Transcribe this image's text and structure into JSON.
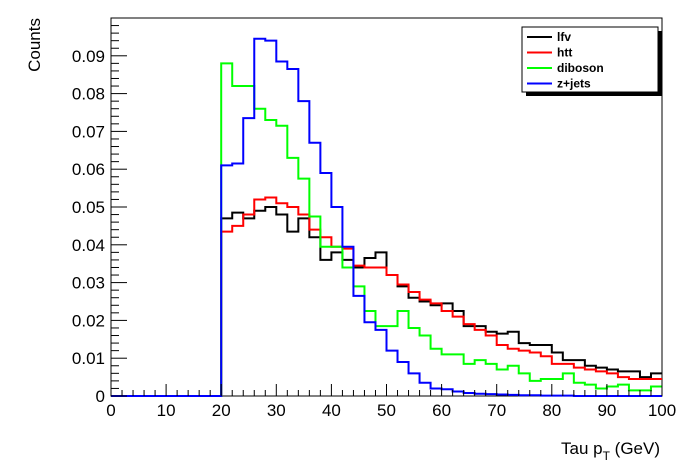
{
  "chart_data": {
    "type": "line",
    "style": "step-histogram",
    "xlabel_main": "Tau p",
    "xlabel_sub": "T",
    "xlabel_unit": " (GeV)",
    "ylabel": "Counts",
    "xlim": [
      0,
      100
    ],
    "ylim": [
      0,
      0.1
    ],
    "x_ticks": [
      "0",
      "10",
      "20",
      "30",
      "40",
      "50",
      "60",
      "70",
      "80",
      "90",
      "100"
    ],
    "x_tick_values": [
      0,
      10,
      20,
      30,
      40,
      50,
      60,
      70,
      80,
      90,
      100
    ],
    "y_ticks": [
      "0",
      "0.01",
      "0.02",
      "0.03",
      "0.04",
      "0.05",
      "0.06",
      "0.07",
      "0.08",
      "0.09"
    ],
    "y_tick_values": [
      0,
      0.01,
      0.02,
      0.03,
      0.04,
      0.05,
      0.06,
      0.07,
      0.08,
      0.09
    ],
    "bin_edges": [
      0,
      2,
      4,
      6,
      8,
      10,
      12,
      14,
      16,
      18,
      20,
      22,
      24,
      26,
      28,
      30,
      32,
      34,
      36,
      38,
      40,
      42,
      44,
      46,
      48,
      50,
      52,
      54,
      56,
      58,
      60,
      62,
      64,
      66,
      68,
      70,
      72,
      74,
      76,
      78,
      80,
      82,
      84,
      86,
      88,
      90,
      92,
      94,
      96,
      98,
      100
    ],
    "legend_position": "top-right",
    "grid": false,
    "series": [
      {
        "name": "lfv",
        "color": "#000000",
        "values": [
          0,
          0,
          0,
          0,
          0,
          0,
          0,
          0,
          0,
          0,
          0.047,
          0.0485,
          0.047,
          0.049,
          0.05,
          0.048,
          0.0435,
          0.047,
          0.042,
          0.036,
          0.038,
          0.036,
          0.034,
          0.0365,
          0.038,
          0.032,
          0.029,
          0.026,
          0.025,
          0.024,
          0.0245,
          0.0225,
          0.0185,
          0.0185,
          0.017,
          0.0165,
          0.017,
          0.014,
          0.0135,
          0.0135,
          0.0115,
          0.0095,
          0.0095,
          0.008,
          0.0075,
          0.007,
          0.0065,
          0.0065,
          0.005,
          0.006
        ]
      },
      {
        "name": "htt",
        "color": "#ff0000",
        "values": [
          0,
          0,
          0,
          0,
          0,
          0,
          0,
          0,
          0,
          0,
          0.0435,
          0.045,
          0.048,
          0.052,
          0.0525,
          0.051,
          0.05,
          0.048,
          0.044,
          0.042,
          0.0395,
          0.039,
          0.0345,
          0.034,
          0.034,
          0.032,
          0.0295,
          0.0275,
          0.0255,
          0.0245,
          0.0225,
          0.021,
          0.019,
          0.0175,
          0.016,
          0.0135,
          0.0125,
          0.012,
          0.0115,
          0.0105,
          0.0085,
          0.0085,
          0.0075,
          0.007,
          0.0065,
          0.006,
          0.005,
          0.0045,
          0.0045,
          0.0045
        ]
      },
      {
        "name": "diboson",
        "color": "#00ff00",
        "values": [
          0,
          0,
          0,
          0,
          0,
          0,
          0,
          0,
          0,
          0,
          0.088,
          0.082,
          0.082,
          0.076,
          0.073,
          0.0715,
          0.063,
          0.0575,
          0.0475,
          0.0395,
          0.0395,
          0.034,
          0.029,
          0.0225,
          0.0185,
          0.0185,
          0.0225,
          0.018,
          0.016,
          0.0125,
          0.011,
          0.011,
          0.0085,
          0.0095,
          0.0085,
          0.007,
          0.008,
          0.006,
          0.004,
          0.0045,
          0.0045,
          0.006,
          0.0035,
          0.003,
          0.002,
          0.0025,
          0.003,
          0.0015,
          0.0015,
          0.0025
        ]
      },
      {
        "name": "z+jets",
        "color": "#0000ff",
        "values": [
          0,
          0,
          0,
          0,
          0,
          0,
          0,
          0,
          0,
          0,
          0.061,
          0.0615,
          0.0735,
          0.0945,
          0.094,
          0.0885,
          0.0865,
          0.078,
          0.067,
          0.059,
          0.05,
          0.0395,
          0.0265,
          0.0195,
          0.0175,
          0.012,
          0.009,
          0.006,
          0.0035,
          0.002,
          0.0018,
          0.0012,
          0.0008,
          0.0006,
          0.0005,
          0.0004,
          0.0003,
          0.0002,
          0.0002,
          0.0001,
          0.0001,
          0.0001,
          0,
          0,
          0,
          0,
          0,
          0,
          0,
          0
        ]
      }
    ]
  }
}
